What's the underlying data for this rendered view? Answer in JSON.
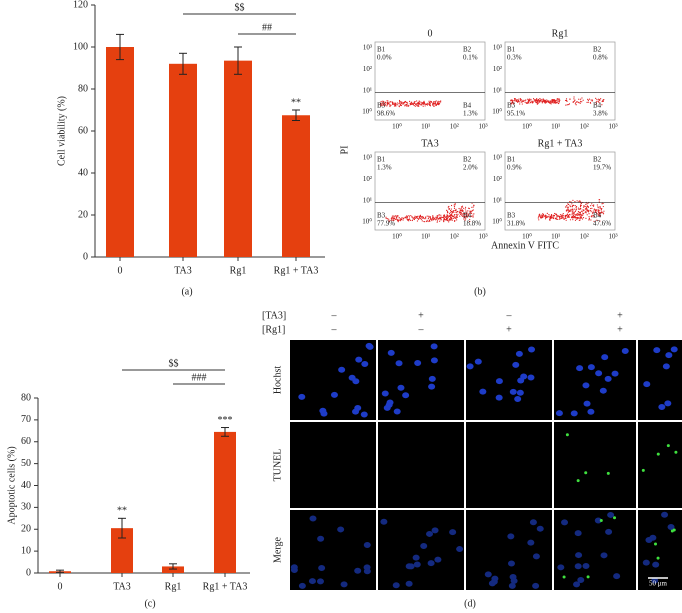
{
  "chart_data": [
    {
      "type": "bar",
      "panel": "(a)",
      "y_label": "Cell viability (%)",
      "categories": [
        "0",
        "TA3",
        "Rg1",
        "Rg1 + TA3"
      ],
      "values": [
        100,
        92,
        93.5,
        67.5
      ],
      "errors": [
        6,
        5,
        6.5,
        2.5
      ],
      "color": "#e5400f",
      "ylim": [
        0,
        120
      ],
      "yticks": [
        0,
        20,
        40,
        60,
        80,
        100,
        120
      ],
      "significance": [
        null,
        null,
        null,
        "**"
      ],
      "brackets": [
        {
          "label": "$$",
          "from": 1,
          "to": 3
        },
        {
          "label": "##",
          "from": 2,
          "to": 3
        }
      ]
    },
    {
      "type": "bar",
      "panel": "(c)",
      "y_label": "Apoptotic cells (%)",
      "categories": [
        "0",
        "TA3",
        "Rg1",
        "Rg1 + TA3"
      ],
      "values": [
        0.8,
        20.5,
        3,
        64.5
      ],
      "errors": [
        0.5,
        4.5,
        1.2,
        2
      ],
      "color": "#e5400f",
      "ylim": [
        0,
        80
      ],
      "yticks": [
        0,
        10,
        20,
        30,
        40,
        50,
        60,
        70,
        80
      ],
      "significance": [
        null,
        "**",
        null,
        "***"
      ],
      "brackets": [
        {
          "label": "$$",
          "from": 1,
          "to": 3
        },
        {
          "label": "###",
          "from": 2,
          "to": 3
        }
      ]
    }
  ],
  "flow": {
    "panel": "(b)",
    "y_label": "PI",
    "x_label": "Annexin V FITC",
    "tick_labels": [
      "10⁰",
      "10¹",
      "10²",
      "10³"
    ],
    "plots": [
      {
        "title": "0",
        "quadrants": [
          {
            "name": "B1",
            "value": "0.0%"
          },
          {
            "name": "B2",
            "value": "0.1%"
          },
          {
            "name": "B3",
            "value": "98.6%"
          },
          {
            "name": "B4",
            "value": "1.3%"
          }
        ]
      },
      {
        "title": "Rg1",
        "quadrants": [
          {
            "name": "B1",
            "value": "0.3%"
          },
          {
            "name": "B2",
            "value": "0.8%"
          },
          {
            "name": "B3",
            "value": "95.1%"
          },
          {
            "name": "B4",
            "value": "3.8%"
          }
        ]
      },
      {
        "title": "TA3",
        "quadrants": [
          {
            "name": "B1",
            "value": "1.3%"
          },
          {
            "name": "B2",
            "value": "2.0%"
          },
          {
            "name": "B3",
            "value": "77.9%"
          },
          {
            "name": "B4",
            "value": "18.8%"
          }
        ]
      },
      {
        "title": "Rg1 + TA3",
        "quadrants": [
          {
            "name": "B1",
            "value": "0.9%"
          },
          {
            "name": "B2",
            "value": "19.7%"
          },
          {
            "name": "B3",
            "value": "31.8%"
          },
          {
            "name": "B4",
            "value": "47.6%"
          }
        ]
      }
    ]
  },
  "microscopy": {
    "panel": "(d)",
    "conditions": [
      {
        "name": "[TA3]",
        "levels": [
          "–",
          "+",
          "–",
          "+"
        ]
      },
      {
        "name": "[Rg1]",
        "levels": [
          "–",
          "–",
          "+",
          "+"
        ]
      }
    ],
    "rows": [
      "Hochst",
      "TUNEL",
      "Merge"
    ],
    "scale": "50 μm"
  }
}
